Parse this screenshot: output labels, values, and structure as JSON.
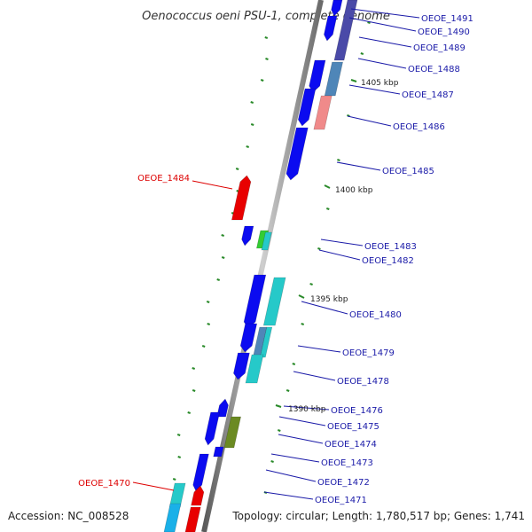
{
  "title": "Oenococcus oeni PSU-1, complete genome",
  "footer": {
    "accession": "Accession: NC_008528",
    "summary": "Topology: circular; Length: 1,780,517 bp; Genes: 1,741"
  },
  "colors": {
    "backbone": "#8c8c8c",
    "tick": "#2a8a2a",
    "label_right": "#1a1aa8",
    "label_left": "#dd0000",
    "gene_blue": "#0b0bf0",
    "gene_red": "#e80000",
    "gene_cyan": "#26c9c9",
    "gene_steel": "#4f86b8",
    "gene_pink": "#f08a8a",
    "gene_olive": "#6b8a22",
    "gene_green": "#33cc33",
    "gene_slate": "#4a4aa8",
    "gene_sky": "#1ab0e8"
  },
  "kbp_markers": [
    "1405 kbp",
    "1400 kbp",
    "1395 kbp",
    "1390 kbp"
  ],
  "gene_labels_right": [
    "OEOE_1491",
    "OEOE_1490",
    "OEOE_1489",
    "OEOE_1488",
    "OEOE_1487",
    "OEOE_1486",
    "OEOE_1485",
    "OEOE_1483",
    "OEOE_1482",
    "OEOE_1480",
    "OEOE_1479",
    "OEOE_1478",
    "OEOE_1476",
    "OEOE_1475",
    "OEOE_1474",
    "OEOE_1473",
    "OEOE_1472",
    "OEOE_1471"
  ],
  "gene_labels_left": [
    "OEOE_1484",
    "OEOE_1470"
  ]
}
